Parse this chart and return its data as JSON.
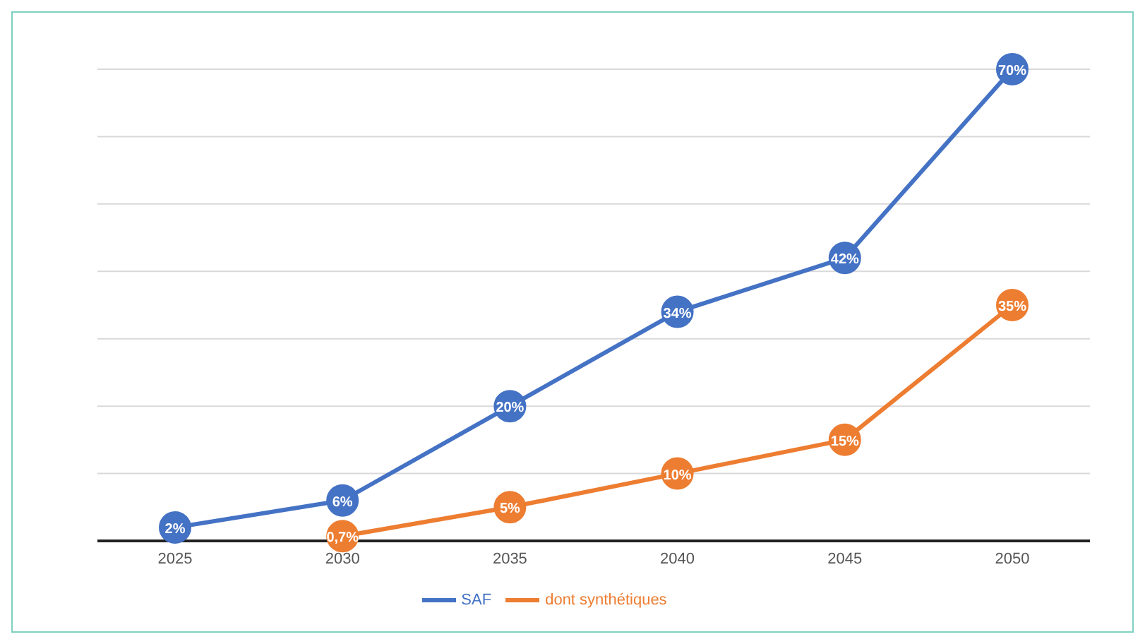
{
  "chart_data": {
    "type": "line",
    "categories": [
      "2025",
      "2030",
      "2035",
      "2040",
      "2045",
      "2050"
    ],
    "series": [
      {
        "name": "SAF",
        "color": "#4472c4",
        "values": [
          2,
          6,
          20,
          34,
          42,
          70
        ],
        "value_labels": [
          "2%",
          "6%",
          "20%",
          "34%",
          "42%",
          "70%"
        ]
      },
      {
        "name": "dont synthétiques",
        "color": "#ed7d31",
        "values": [
          null,
          0.7,
          5,
          10,
          15,
          35
        ],
        "value_labels": [
          null,
          "0,7%",
          "5%",
          "10%",
          "15%",
          "35%"
        ]
      }
    ],
    "ylim": [
      0,
      70
    ],
    "grid": "y",
    "legend": "bottom",
    "marker": "circle",
    "line_style": "solid",
    "tick_labels": "x"
  }
}
